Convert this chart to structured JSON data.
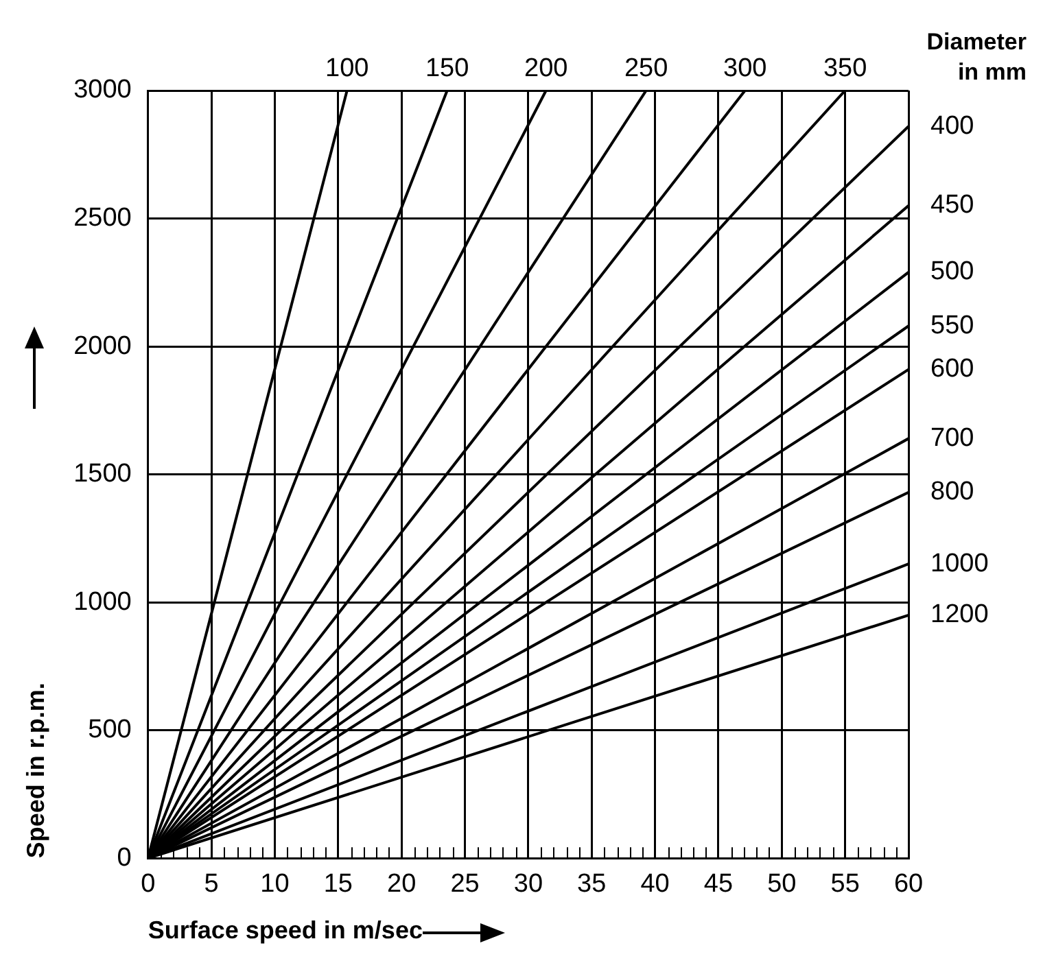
{
  "chart_data": {
    "type": "line",
    "xlabel": "Surface speed in m/sec",
    "ylabel": "Speed in r.p.m.",
    "legend_title": "Diameter in mm",
    "xlim": [
      0,
      60
    ],
    "ylim": [
      0,
      3000
    ],
    "xticks": [
      0,
      {
        "value": 1,
        "label": null
      },
      {
        "value": 2,
        "label": null
      },
      {
        "value": 3,
        "label": null
      },
      {
        "value": 4,
        "label": null
      },
      5,
      {
        "value": 6,
        "label": null
      },
      {
        "value": 7,
        "label": null
      },
      {
        "value": 8,
        "label": null
      },
      {
        "value": 9,
        "label": null
      },
      10,
      {
        "value": 11,
        "label": null
      },
      {
        "value": 12,
        "label": null
      },
      {
        "value": 13,
        "label": null
      },
      {
        "value": 14,
        "label": null
      },
      15,
      {
        "value": 16,
        "label": null
      },
      {
        "value": 17,
        "label": null
      },
      {
        "value": 18,
        "label": null
      },
      {
        "value": 19,
        "label": null
      },
      20,
      {
        "value": 21,
        "label": null
      },
      {
        "value": 22,
        "label": null
      },
      {
        "value": 23,
        "label": null
      },
      {
        "value": 24,
        "label": null
      },
      25,
      {
        "value": 26,
        "label": null
      },
      {
        "value": 27,
        "label": null
      },
      {
        "value": 28,
        "label": null
      },
      {
        "value": 29,
        "label": null
      },
      30,
      {
        "value": 31,
        "label": null
      },
      {
        "value": 32,
        "label": null
      },
      {
        "value": 33,
        "label": null
      },
      {
        "value": 34,
        "label": null
      },
      35,
      {
        "value": 36,
        "label": null
      },
      {
        "value": 37,
        "label": null
      },
      {
        "value": 38,
        "label": null
      },
      {
        "value": 39,
        "label": null
      },
      40,
      {
        "value": 41,
        "label": null
      },
      {
        "value": 42,
        "label": null
      },
      {
        "value": 43,
        "label": null
      },
      {
        "value": 44,
        "label": null
      },
      45,
      {
        "value": 46,
        "label": null
      },
      {
        "value": 47,
        "label": null
      },
      {
        "value": 48,
        "label": null
      },
      {
        "value": 49,
        "label": null
      },
      50,
      {
        "value": 51,
        "label": null
      },
      {
        "value": 52,
        "label": null
      },
      {
        "value": 53,
        "label": null
      },
      {
        "value": 54,
        "label": null
      },
      55,
      {
        "value": 56,
        "label": null
      },
      {
        "value": 57,
        "label": null
      },
      {
        "value": 58,
        "label": null
      },
      {
        "value": 59,
        "label": null
      },
      60
    ],
    "yticks": [
      0,
      500,
      1000,
      1500,
      2000,
      2500,
      3000
    ],
    "grid": true,
    "marker": "none",
    "line_style": "solid",
    "legend": false,
    "series": [
      {
        "name": "100",
        "color": "#000000",
        "x": [
          0,
          15.7
        ],
        "values": [
          0,
          3000
        ]
      },
      {
        "name": "150",
        "color": "#000000",
        "x": [
          0,
          23.6
        ],
        "values": [
          0,
          3000
        ]
      },
      {
        "name": "200",
        "color": "#000000",
        "x": [
          0,
          31.4
        ],
        "values": [
          0,
          3000
        ]
      },
      {
        "name": "250",
        "color": "#000000",
        "x": [
          0,
          39.3
        ],
        "values": [
          0,
          3000
        ]
      },
      {
        "name": "300",
        "color": "#000000",
        "x": [
          0,
          47.1
        ],
        "values": [
          0,
          3000
        ]
      },
      {
        "name": "350",
        "color": "#000000",
        "x": [
          0,
          55
        ],
        "values": [
          0,
          3000
        ]
      },
      {
        "name": "400",
        "color": "#000000",
        "x": [
          0,
          60
        ],
        "values": [
          0,
          2860
        ]
      },
      {
        "name": "450",
        "color": "#000000",
        "x": [
          0,
          60
        ],
        "values": [
          0,
          2550
        ]
      },
      {
        "name": "500",
        "color": "#000000",
        "x": [
          0,
          60
        ],
        "values": [
          0,
          2290
        ]
      },
      {
        "name": "550",
        "color": "#000000",
        "x": [
          0,
          60
        ],
        "values": [
          0,
          2080
        ]
      },
      {
        "name": "600",
        "color": "#000000",
        "x": [
          0,
          60
        ],
        "values": [
          0,
          1910
        ]
      },
      {
        "name": "700",
        "color": "#000000",
        "x": [
          0,
          60
        ],
        "values": [
          0,
          1640
        ]
      },
      {
        "name": "800",
        "color": "#000000",
        "x": [
          0,
          60
        ],
        "values": [
          0,
          1430
        ]
      },
      {
        "name": "1000",
        "color": "#000000",
        "x": [
          0,
          60
        ],
        "values": [
          0,
          1150
        ]
      },
      {
        "name": "1200",
        "color": "#000000",
        "x": [
          0,
          60
        ],
        "values": [
          0,
          950
        ]
      }
    ]
  }
}
